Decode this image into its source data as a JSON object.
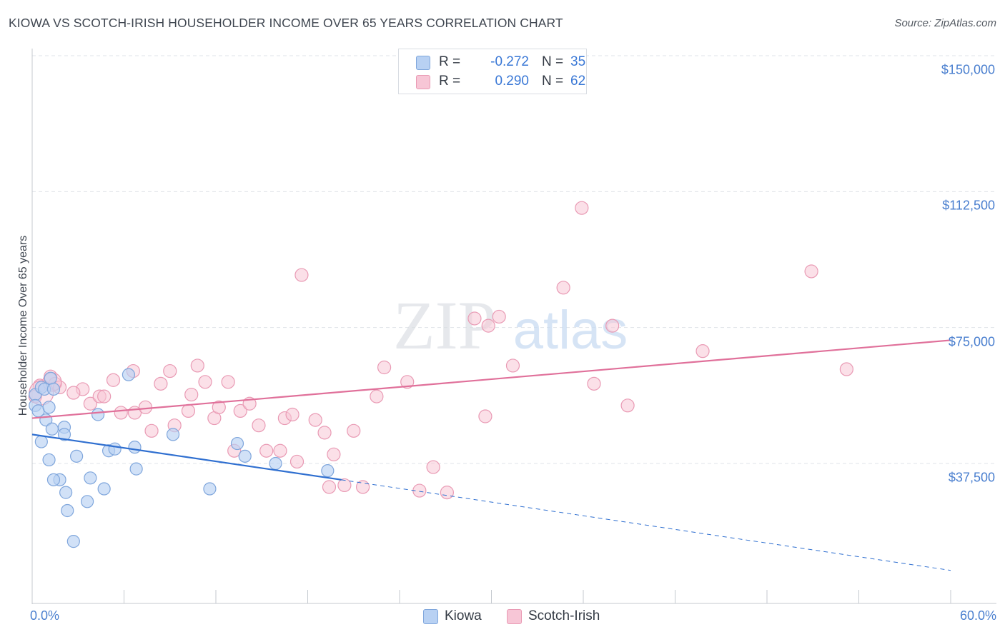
{
  "title": "KIOWA VS SCOTCH-IRISH HOUSEHOLDER INCOME OVER 65 YEARS CORRELATION CHART",
  "source": "Source: ZipAtlas.com",
  "watermark": {
    "zip": "ZIP",
    "atlas": "atlas"
  },
  "legend": {
    "rows": [
      {
        "r_label": "R =",
        "r_value": "-0.272",
        "n_label": "N =",
        "n_value": "35"
      },
      {
        "r_label": "R =",
        "r_value": "0.290",
        "n_label": "N =",
        "n_value": "62"
      }
    ]
  },
  "bottom_legend": [
    "Kiowa",
    "Scotch-Irish"
  ],
  "colors": {
    "kiowa_fill": "#b8d1f3",
    "kiowa_stroke": "#7fa6dc",
    "kiowa_line": "#2f6fd0",
    "scotch_fill": "#f7c6d6",
    "scotch_stroke": "#e99ab4",
    "scotch_line": "#e0709a",
    "tick_text": "#4a7fcf",
    "grid": "#dfe3e8"
  },
  "chart_data": {
    "type": "scatter",
    "title": "KIOWA VS SCOTCH-IRISH HOUSEHOLDER INCOME OVER 65 YEARS CORRELATION CHART",
    "xlabel": "",
    "ylabel": "Householder Income Over 65 years",
    "x_unit": "%",
    "xlim": [
      0,
      60
    ],
    "ylim": [
      0,
      153000
    ],
    "y_ticks": [
      37500,
      75000,
      112500,
      150000
    ],
    "y_tick_labels": [
      "$37,500",
      "$75,000",
      "$112,500",
      "$150,000"
    ],
    "x_tick_labels": [
      "0.0%",
      "60.0%"
    ],
    "legend_position": "top-center",
    "series": [
      {
        "name": "Kiowa",
        "r": -0.272,
        "n": 35,
        "trend": {
          "x0": 0,
          "y0": 45500,
          "x1": 20.2,
          "y1": 33000
        },
        "trend_dashed": {
          "x0": 20.2,
          "y0": 33000,
          "x1": 60,
          "y1": 8000
        },
        "points": [
          [
            0.2,
            56500
          ],
          [
            0.2,
            53500
          ],
          [
            0.4,
            52000
          ],
          [
            0.6,
            58500
          ],
          [
            0.8,
            58000
          ],
          [
            1.2,
            61000
          ],
          [
            1.1,
            53000
          ],
          [
            1.4,
            58000
          ],
          [
            0.9,
            49500
          ],
          [
            1.3,
            47000
          ],
          [
            2.1,
            47500
          ],
          [
            2.1,
            45500
          ],
          [
            0.6,
            43500
          ],
          [
            1.1,
            38500
          ],
          [
            2.9,
            39500
          ],
          [
            5.0,
            41000
          ],
          [
            5.4,
            41500
          ],
          [
            6.7,
            42000
          ],
          [
            6.8,
            36000
          ],
          [
            3.8,
            33500
          ],
          [
            1.8,
            33000
          ],
          [
            1.4,
            33000
          ],
          [
            4.7,
            30500
          ],
          [
            2.2,
            29500
          ],
          [
            3.6,
            27000
          ],
          [
            2.3,
            24500
          ],
          [
            2.7,
            16000
          ],
          [
            4.3,
            51000
          ],
          [
            6.3,
            62000
          ],
          [
            9.2,
            45500
          ],
          [
            11.6,
            30500
          ],
          [
            13.4,
            43000
          ],
          [
            13.9,
            39500
          ],
          [
            15.9,
            37500
          ],
          [
            19.3,
            35500
          ]
        ]
      },
      {
        "name": "Scotch-Irish",
        "r": 0.29,
        "n": 62,
        "trend": {
          "x0": 0,
          "y0": 50000,
          "x1": 60,
          "y1": 71500
        },
        "points": [
          [
            0.5,
            59000
          ],
          [
            1.2,
            61500
          ],
          [
            0.2,
            56000
          ],
          [
            1.5,
            59500
          ],
          [
            1.8,
            58500
          ],
          [
            3.3,
            58000
          ],
          [
            2.7,
            57000
          ],
          [
            3.8,
            54000
          ],
          [
            4.4,
            56000
          ],
          [
            4.7,
            56000
          ],
          [
            5.3,
            60500
          ],
          [
            5.8,
            51500
          ],
          [
            6.6,
            63000
          ],
          [
            6.7,
            51500
          ],
          [
            7.4,
            53000
          ],
          [
            7.8,
            46500
          ],
          [
            8.4,
            59500
          ],
          [
            9.0,
            63000
          ],
          [
            9.3,
            48000
          ],
          [
            10.2,
            52000
          ],
          [
            10.4,
            56500
          ],
          [
            10.8,
            64500
          ],
          [
            11.3,
            60000
          ],
          [
            11.9,
            50000
          ],
          [
            12.2,
            53000
          ],
          [
            12.8,
            60000
          ],
          [
            13.2,
            41000
          ],
          [
            13.6,
            52000
          ],
          [
            14.2,
            54000
          ],
          [
            14.8,
            48000
          ],
          [
            15.3,
            41000
          ],
          [
            16.2,
            41000
          ],
          [
            16.5,
            50000
          ],
          [
            17.0,
            51000
          ],
          [
            17.3,
            38000
          ],
          [
            17.6,
            89500
          ],
          [
            18.5,
            49500
          ],
          [
            19.1,
            46000
          ],
          [
            19.4,
            31000
          ],
          [
            19.7,
            40000
          ],
          [
            20.4,
            31500
          ],
          [
            21.0,
            46500
          ],
          [
            21.6,
            31000
          ],
          [
            22.5,
            56000
          ],
          [
            23.0,
            64000
          ],
          [
            24.5,
            60000
          ],
          [
            25.3,
            30000
          ],
          [
            26.2,
            36500
          ],
          [
            27.1,
            29500
          ],
          [
            28.9,
            77500
          ],
          [
            29.6,
            50500
          ],
          [
            29.8,
            75500
          ],
          [
            30.5,
            78000
          ],
          [
            31.4,
            64500
          ],
          [
            34.7,
            86000
          ],
          [
            35.9,
            108000
          ],
          [
            36.7,
            59500
          ],
          [
            37.9,
            75500
          ],
          [
            38.9,
            53500
          ],
          [
            43.8,
            68500
          ],
          [
            50.9,
            90500
          ],
          [
            53.2,
            63500
          ]
        ]
      }
    ]
  }
}
